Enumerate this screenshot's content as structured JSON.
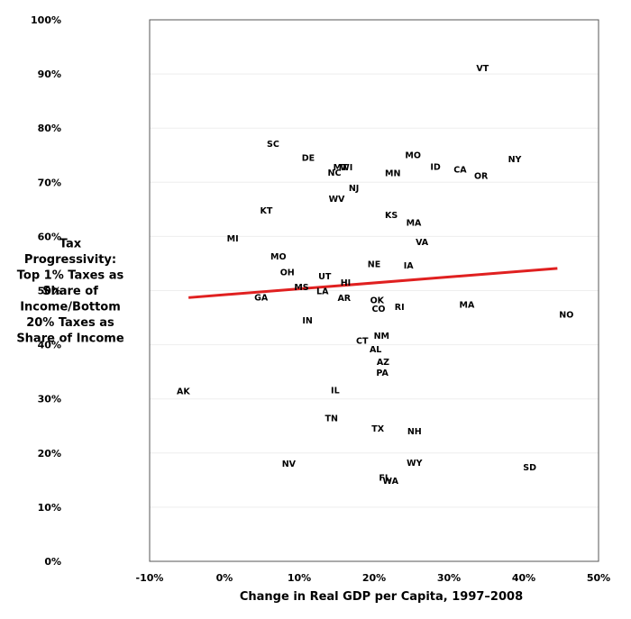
{
  "chart_data": {
    "type": "scatter",
    "title": "",
    "xlabel": "Change in Real GDP per Capita, 1997–2008",
    "ylabel": [
      "Tax",
      "Progressivity:",
      "Top 1% Taxes as",
      "Share of",
      "Income/Bottom",
      "20% Taxes as",
      "Share of Income"
    ],
    "xlim": [
      -10,
      50
    ],
    "ylim": [
      0,
      100
    ],
    "x_ticks": [
      "-10%",
      "0%",
      "10%",
      "20%",
      "30%",
      "40%",
      "50%"
    ],
    "y_ticks": [
      "0%",
      "10%",
      "20%",
      "30%",
      "40%",
      "50%",
      "60%",
      "70%",
      "80%",
      "90%",
      "100%"
    ],
    "grid": true,
    "points": [
      {
        "label": "VT",
        "x": 34.5,
        "y": 91
      },
      {
        "label": "SC",
        "x": 6.5,
        "y": 77
      },
      {
        "label": "DE",
        "x": 11.2,
        "y": 74.5
      },
      {
        "label": "MO",
        "x": 25.2,
        "y": 75
      },
      {
        "label": "NY",
        "x": 38.8,
        "y": 74.2
      },
      {
        "label": "ID",
        "x": 28.2,
        "y": 72.8
      },
      {
        "label": "CA",
        "x": 31.5,
        "y": 72.3
      },
      {
        "label": "MT",
        "x": 15.5,
        "y": 72.7
      },
      {
        "label": "WI",
        "x": 16.3,
        "y": 72.7
      },
      {
        "label": "NC",
        "x": 14.7,
        "y": 71.7
      },
      {
        "label": "MN",
        "x": 22.5,
        "y": 71.6
      },
      {
        "label": "OR",
        "x": 34.3,
        "y": 71.1
      },
      {
        "label": "NJ",
        "x": 17.3,
        "y": 68.9
      },
      {
        "label": "WV",
        "x": 15.0,
        "y": 66.9
      },
      {
        "label": "KT",
        "x": 5.6,
        "y": 64.7
      },
      {
        "label": "KS",
        "x": 22.3,
        "y": 63.9
      },
      {
        "label": "MA",
        "x": 25.3,
        "y": 62.5
      },
      {
        "label": "MI",
        "x": 1.1,
        "y": 59.6
      },
      {
        "label": "VA",
        "x": 26.4,
        "y": 58.9
      },
      {
        "label": "MO",
        "x": 7.2,
        "y": 56.2
      },
      {
        "label": "NE",
        "x": 20.0,
        "y": 54.8
      },
      {
        "label": "IA",
        "x": 24.6,
        "y": 54.6
      },
      {
        "label": "OH",
        "x": 8.4,
        "y": 53.3
      },
      {
        "label": "UT",
        "x": 13.4,
        "y": 52.6
      },
      {
        "label": "HI",
        "x": 16.2,
        "y": 51.4
      },
      {
        "label": "MS",
        "x": 10.3,
        "y": 50.6
      },
      {
        "label": "LA",
        "x": 13.1,
        "y": 49.8
      },
      {
        "label": "GA",
        "x": 4.9,
        "y": 48.7
      },
      {
        "label": "AR",
        "x": 16.0,
        "y": 48.6
      },
      {
        "label": "OK",
        "x": 20.4,
        "y": 48.2
      },
      {
        "label": "CO",
        "x": 20.6,
        "y": 46.6
      },
      {
        "label": "RI",
        "x": 23.4,
        "y": 46.9
      },
      {
        "label": "MA",
        "x": 32.4,
        "y": 47.3
      },
      {
        "label": "NO",
        "x": 45.7,
        "y": 45.5
      },
      {
        "label": "IN",
        "x": 11.1,
        "y": 44.4
      },
      {
        "label": "NM",
        "x": 21.0,
        "y": 41.6
      },
      {
        "label": "CT",
        "x": 18.4,
        "y": 40.7
      },
      {
        "label": "AL",
        "x": 20.2,
        "y": 39.1
      },
      {
        "label": "AZ",
        "x": 21.2,
        "y": 36.8
      },
      {
        "label": "PA",
        "x": 21.1,
        "y": 34.8
      },
      {
        "label": "AK",
        "x": -5.5,
        "y": 31.4
      },
      {
        "label": "IL",
        "x": 14.8,
        "y": 31.5
      },
      {
        "label": "TN",
        "x": 14.3,
        "y": 26.4
      },
      {
        "label": "TX",
        "x": 20.5,
        "y": 24.5
      },
      {
        "label": "NH",
        "x": 25.4,
        "y": 24.0
      },
      {
        "label": "NV",
        "x": 8.6,
        "y": 18.0
      },
      {
        "label": "WY",
        "x": 25.4,
        "y": 18.1
      },
      {
        "label": "SD",
        "x": 40.8,
        "y": 17.3
      },
      {
        "label": "FL",
        "x": 21.4,
        "y": 15.4
      },
      {
        "label": "WA",
        "x": 22.2,
        "y": 14.8
      }
    ],
    "trendline": {
      "color": "#e02020",
      "x": [
        -4.8,
        44.5
      ],
      "y": [
        48.7,
        54.1
      ]
    },
    "colors": {
      "points": "#000000",
      "grid": "#eeeeee",
      "trendline": "#e02020"
    }
  }
}
